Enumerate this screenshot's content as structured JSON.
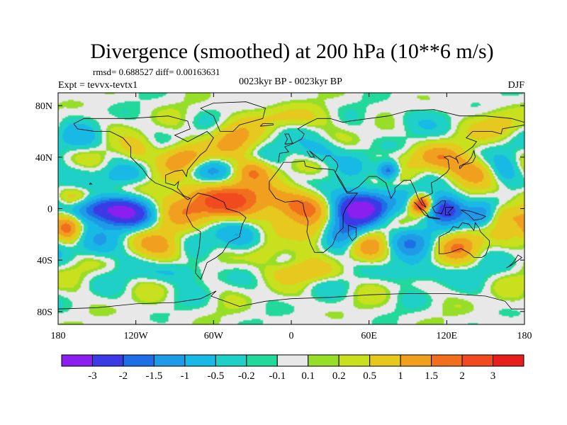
{
  "chart_data": {
    "type": "heatmap",
    "title": "Divergence (smoothed) at 200 hPa (10**6 m/s)",
    "stats_text": "rmsd= 0.688527 diff= 0.00163631",
    "experiment_text": "Expt = tevvx-tevtx1",
    "period_text": "0023kyr BP - 0023kyr BP",
    "season_text": "DJF",
    "map_projection": "cylindrical equidistant, global",
    "lon_range": [
      -180,
      180
    ],
    "lat_range": [
      -90,
      90
    ],
    "x_ticks": [
      {
        "value": -180,
        "label": "180"
      },
      {
        "value": -120,
        "label": "120W"
      },
      {
        "value": -60,
        "label": "60W"
      },
      {
        "value": 0,
        "label": "0"
      },
      {
        "value": 60,
        "label": "60E"
      },
      {
        "value": 120,
        "label": "120E"
      },
      {
        "value": 180,
        "label": "180"
      }
    ],
    "y_ticks": [
      {
        "value": 80,
        "label": "80N"
      },
      {
        "value": 40,
        "label": "40N"
      },
      {
        "value": 0,
        "label": "0"
      },
      {
        "value": -40,
        "label": "40S"
      },
      {
        "value": -80,
        "label": "80S"
      }
    ],
    "colorbar": {
      "placement": "bottom",
      "colors": [
        "#8a1ff0",
        "#3b3be6",
        "#1e6fe6",
        "#1e9ae6",
        "#19b9e6",
        "#1fd0c8",
        "#22d89a",
        "#e8e8e8",
        "#96de28",
        "#c8e01e",
        "#e6c81e",
        "#f0a01e",
        "#f06e1e",
        "#f04a1e",
        "#e61e1e"
      ],
      "levels": [
        "-3",
        "-2",
        "-1.5",
        "-1",
        "-0.5",
        "-0.2",
        "-0.1",
        "0.1",
        "0.2",
        "0.5",
        "1",
        "1.5",
        "2",
        "3"
      ]
    },
    "features": [
      {
        "lon": -10,
        "lat": 5,
        "sx": 32,
        "sy": 10,
        "v": 1.5
      },
      {
        "lon": -70,
        "lat": 5,
        "sx": 22,
        "sy": 12,
        "v": 1.3
      },
      {
        "lon": 40,
        "lat": 10,
        "sx": 22,
        "sy": 8,
        "v": -0.8
      },
      {
        "lon": 55,
        "lat": 0,
        "sx": 14,
        "sy": 8,
        "v": -2.8
      },
      {
        "lon": 100,
        "lat": 3,
        "sx": 6,
        "sy": 5,
        "v": 2.5
      },
      {
        "lon": 120,
        "lat": 0,
        "sx": 10,
        "sy": 8,
        "v": -2.5
      },
      {
        "lon": 145,
        "lat": -5,
        "sx": 9,
        "sy": 6,
        "v": -1.4
      },
      {
        "lon": 160,
        "lat": -5,
        "sx": 14,
        "sy": 7,
        "v": 1.2
      },
      {
        "lon": -150,
        "lat": 0,
        "sx": 18,
        "sy": 7,
        "v": -2.2
      },
      {
        "lon": -125,
        "lat": -5,
        "sx": 14,
        "sy": 8,
        "v": -1.5
      },
      {
        "lon": -170,
        "lat": 8,
        "sx": 10,
        "sy": 6,
        "v": 1.0
      },
      {
        "lon": -172,
        "lat": -15,
        "sx": 7,
        "sy": 8,
        "v": 1.4
      },
      {
        "lon": -80,
        "lat": 40,
        "sx": 12,
        "sy": 8,
        "v": 1.2
      },
      {
        "lon": -45,
        "lat": 55,
        "sx": 12,
        "sy": 10,
        "v": 1.4
      },
      {
        "lon": -65,
        "lat": 30,
        "sx": 14,
        "sy": 6,
        "v": -0.8
      },
      {
        "lon": -120,
        "lat": 45,
        "sx": 10,
        "sy": 8,
        "v": 1.0
      },
      {
        "lon": -130,
        "lat": 25,
        "sx": 12,
        "sy": 6,
        "v": -0.7
      },
      {
        "lon": 0,
        "lat": 72,
        "sx": 20,
        "sy": 6,
        "v": 1.1
      },
      {
        "lon": 20,
        "lat": 45,
        "sx": 12,
        "sy": 7,
        "v": -1.0
      },
      {
        "lon": 75,
        "lat": 30,
        "sx": 6,
        "sy": 5,
        "v": -2.0
      },
      {
        "lon": 110,
        "lat": 40,
        "sx": 14,
        "sy": 8,
        "v": 1.1
      },
      {
        "lon": 140,
        "lat": 30,
        "sx": 16,
        "sy": 8,
        "v": 1.2
      },
      {
        "lon": 165,
        "lat": 30,
        "sx": 10,
        "sy": 8,
        "v": -1.0
      },
      {
        "lon": 160,
        "lat": 65,
        "sx": 12,
        "sy": 8,
        "v": 1.2
      },
      {
        "lon": 90,
        "lat": 70,
        "sx": 14,
        "sy": 7,
        "v": -0.6
      },
      {
        "lon": -40,
        "lat": -25,
        "sx": 14,
        "sy": 10,
        "v": -1.1
      },
      {
        "lon": -20,
        "lat": -35,
        "sx": 12,
        "sy": 8,
        "v": 1.0
      },
      {
        "lon": 20,
        "lat": -20,
        "sx": 12,
        "sy": 8,
        "v": 0.9
      },
      {
        "lon": 40,
        "lat": -20,
        "sx": 12,
        "sy": 9,
        "v": -1.3
      },
      {
        "lon": 60,
        "lat": -30,
        "sx": 12,
        "sy": 8,
        "v": 1.0
      },
      {
        "lon": 90,
        "lat": -25,
        "sx": 14,
        "sy": 8,
        "v": -1.0
      },
      {
        "lon": 130,
        "lat": -28,
        "sx": 12,
        "sy": 8,
        "v": 1.2
      },
      {
        "lon": -100,
        "lat": -30,
        "sx": 14,
        "sy": 8,
        "v": 1.0
      },
      {
        "lon": -150,
        "lat": -30,
        "sx": 12,
        "sy": 8,
        "v": -0.9
      },
      {
        "lon": -90,
        "lat": -50,
        "sx": 16,
        "sy": 6,
        "v": -0.8
      },
      {
        "lon": 10,
        "lat": -50,
        "sx": 20,
        "sy": 5,
        "v": 0.8
      },
      {
        "lon": 100,
        "lat": -50,
        "sx": 20,
        "sy": 6,
        "v": -0.7
      },
      {
        "lon": -160,
        "lat": 55,
        "sx": 12,
        "sy": 8,
        "v": -0.9
      },
      {
        "lon": -30,
        "lat": 30,
        "sx": 10,
        "sy": 6,
        "v": 1.0
      }
    ]
  }
}
